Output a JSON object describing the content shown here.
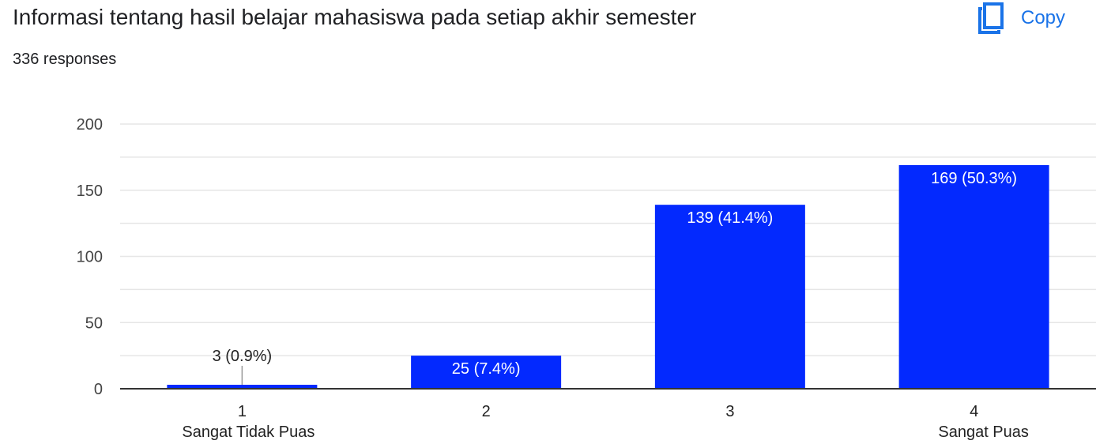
{
  "header": {
    "title": "Informasi tentang hasil belajar mahasiswa pada setiap akhir semester",
    "responses": "336 responses",
    "copy_label": "Copy",
    "copy_icon": "copy-icon"
  },
  "colors": {
    "bar": "#0329fe",
    "accent": "#1a73e8",
    "grid": "#e6e6e6",
    "axis": "#333333"
  },
  "chart_data": {
    "type": "bar",
    "categories": [
      "1",
      "2",
      "3",
      "4"
    ],
    "category_sublabels": [
      "Sangat Tidak Puas",
      "",
      "",
      "Sangat Puas"
    ],
    "values": [
      3,
      25,
      139,
      169
    ],
    "data_labels": [
      "3 (0.9%)",
      "25 (7.4%)",
      "139 (41.4%)",
      "169 (50.3%)"
    ],
    "yticks": [
      "0",
      "50",
      "100",
      "150",
      "200"
    ],
    "ylim": [
      0,
      200
    ],
    "grid": true
  }
}
